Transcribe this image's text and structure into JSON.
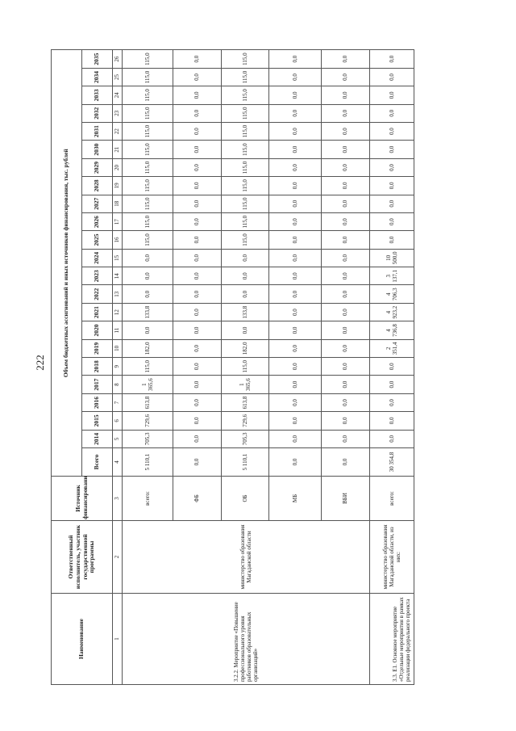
{
  "page_number": "222",
  "header": {
    "name": "Наименование",
    "responsible": "Ответственный исполнитель, участник государственной программы",
    "source": "Источник финансирования",
    "volume_title": "Объем бюджетных ассигнований и иных источников финансирования, тыс. рублей",
    "total": "Всего",
    "years": [
      "2014",
      "2015",
      "2016",
      "2017",
      "2018",
      "2019",
      "2020",
      "2021",
      "2022",
      "2023",
      "2024",
      "2025",
      "2026",
      "2027",
      "2028",
      "2029",
      "2030",
      "2031",
      "2032",
      "2033",
      "2034",
      "2035"
    ],
    "column_numbers": [
      "1",
      "2",
      "3",
      "4",
      "5",
      "6",
      "7",
      "8",
      "9",
      "10",
      "11",
      "12",
      "13",
      "14",
      "15",
      "16",
      "17",
      "18",
      "19",
      "20",
      "21",
      "22",
      "23",
      "24",
      "25",
      "26"
    ]
  },
  "sections": [
    {
      "name": "3.2.2. Мероприятие «Повышение профессионального уровня работников образовательных организаций»",
      "responsible": "министерство образования Магаданской области",
      "rows": [
        {
          "source": "всего:",
          "total": "5 110,1",
          "values": [
            "705,3",
            "729,6",
            "613,8",
            "1 365,6",
            "115,0",
            "182,0",
            "0,0",
            "133,8",
            "0,0",
            "0,0",
            "0,0",
            "115,0",
            "115,0",
            "115,0",
            "115,0",
            "115,0",
            "115,0",
            "115,0",
            "115,0",
            "115,0",
            "115,0",
            "115,0"
          ]
        },
        {
          "source": "ФБ",
          "total": "0,0",
          "values": [
            "0,0",
            "0,0",
            "0,0",
            "0,0",
            "0,0",
            "0,0",
            "0,0",
            "0,0",
            "0,0",
            "0,0",
            "0,0",
            "0,0",
            "0,0",
            "0,0",
            "0,0",
            "0,0",
            "0,0",
            "0,0",
            "0,0",
            "0,0",
            "0,0",
            "0,0"
          ]
        },
        {
          "source": "ОБ",
          "total": "5 110,1",
          "values": [
            "705,3",
            "729,6",
            "613,8",
            "1 365,6",
            "115,0",
            "182,0",
            "0,0",
            "133,8",
            "0,0",
            "0,0",
            "0,0",
            "115,0",
            "115,0",
            "115,0",
            "115,0",
            "115,0",
            "115,0",
            "115,0",
            "115,0",
            "115,0",
            "115,0",
            "115,0"
          ]
        },
        {
          "source": "МБ",
          "total": "0,0",
          "values": [
            "0,0",
            "0,0",
            "0,0",
            "0,0",
            "0,0",
            "0,0",
            "0,0",
            "0,0",
            "0,0",
            "0,0",
            "0,0",
            "0,0",
            "0,0",
            "0,0",
            "0,0",
            "0,0",
            "0,0",
            "0,0",
            "0,0",
            "0,0",
            "0,0",
            "0,0"
          ]
        },
        {
          "source": "ВБИ",
          "total": "0,0",
          "values": [
            "0,0",
            "0,0",
            "0,0",
            "0,0",
            "0,0",
            "0,0",
            "0,0",
            "0,0",
            "0,0",
            "0,0",
            "0,0",
            "0,0",
            "0,0",
            "0,0",
            "0,0",
            "0,0",
            "0,0",
            "0,0",
            "0,0",
            "0,0",
            "0,0",
            "0,0"
          ]
        }
      ]
    },
    {
      "name": "3.3. E1. Основное мероприятие «Отдельные мероприятия в рамках реализации федерального проекта",
      "responsible": "министерство образования Магаданской области, из них:",
      "rows": [
        {
          "source": "всего:",
          "total": "30 354,8",
          "values": [
            "0,0",
            "0,0",
            "0,0",
            "0,0",
            "0,0",
            "2 351,4",
            "4 736,8",
            "4 923,2",
            "4 706,3",
            "3 137,1",
            "10 500,0",
            "0,0",
            "0,0",
            "0,0",
            "0,0",
            "0,0",
            "0,0",
            "0,0",
            "0,0",
            "0,0",
            "0,0",
            "0,0"
          ]
        }
      ]
    }
  ]
}
